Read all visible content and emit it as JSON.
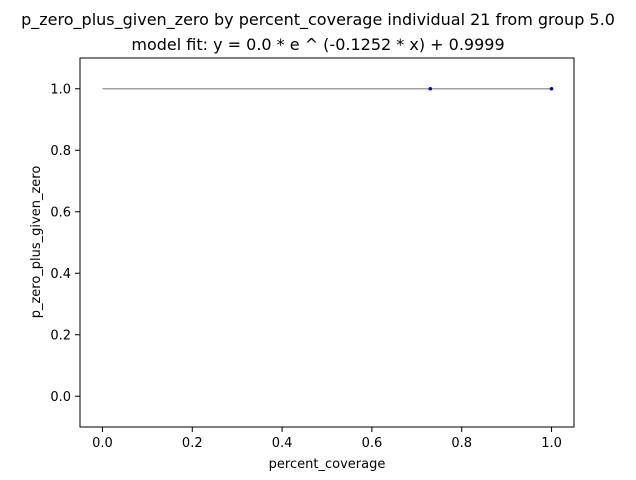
{
  "chart_data": {
    "type": "scatter",
    "title": "p_zero_plus_given_zero by percent_coverage individual 21 from group 5.0",
    "subtitle": "model fit: y = 0.0 * e ^ (-0.1252 * x) + 0.9999",
    "xlabel": "percent_coverage",
    "ylabel": "p_zero_plus_given_zero",
    "xlim": [
      -0.05,
      1.05
    ],
    "ylim": [
      -0.1,
      1.1
    ],
    "x_ticks": [
      0.0,
      0.2,
      0.4,
      0.6,
      0.8,
      1.0
    ],
    "x_tick_labels": [
      "0.0",
      "0.2",
      "0.4",
      "0.6",
      "0.8",
      "1.0"
    ],
    "y_ticks": [
      0.0,
      0.2,
      0.4,
      0.6,
      0.8,
      1.0
    ],
    "y_tick_labels": [
      "0.0",
      "0.2",
      "0.4",
      "0.6",
      "0.8",
      "1.0"
    ],
    "grid": false,
    "series": [
      {
        "kind": "points",
        "color": "#0000cc",
        "x": [
          0.73,
          1.0
        ],
        "y": [
          1.0,
          1.0
        ]
      },
      {
        "kind": "fit-line",
        "color": "#a0a0a0",
        "x": [
          0.0,
          1.0
        ],
        "y": [
          0.9999,
          0.9999
        ]
      }
    ]
  }
}
